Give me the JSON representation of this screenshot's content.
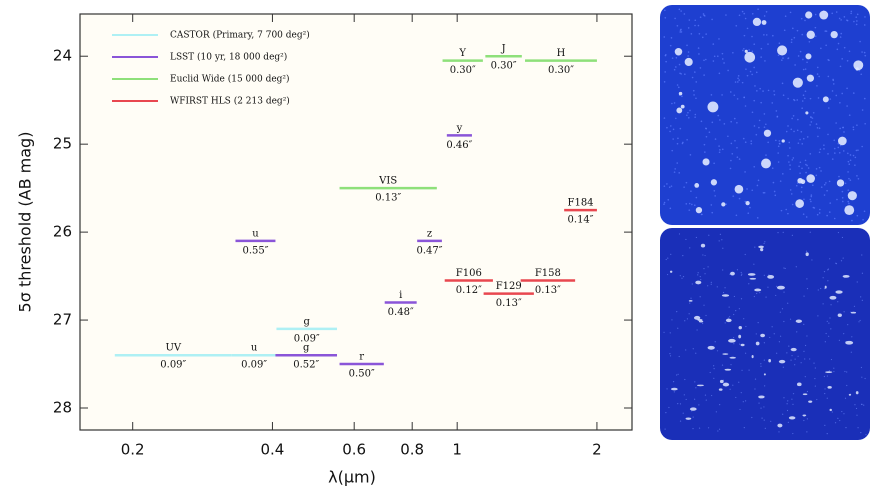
{
  "chart_data": {
    "type": "segment",
    "x_label": "λ(μm)",
    "y_label": "5σ threshold (AB mag)",
    "x_log": true,
    "xlim": [
      0.154,
      2.38
    ],
    "xticks": [
      0.2,
      0.4,
      0.6,
      0.8,
      1,
      2
    ],
    "ylim": [
      23.52,
      28.25
    ],
    "y_inverted": true,
    "yticks": [
      24,
      25,
      26,
      27,
      28
    ],
    "legend_position": "upper left",
    "series": [
      {
        "name": "CASTOR (Primary, 7 700 deg²)",
        "color": "#aef0f4",
        "bands": [
          {
            "label": "UV",
            "resolution": "0.09″",
            "x": [
              0.183,
              0.327
            ],
            "y": 27.4
          },
          {
            "label": "u",
            "resolution": "0.09″",
            "x": [
              0.327,
              0.408
            ],
            "y": 27.4
          },
          {
            "label": "g",
            "resolution": "0.09″",
            "x": [
              0.408,
              0.551
            ],
            "y": 27.1
          }
        ]
      },
      {
        "name": "LSST (10 yr, 18 000 deg²)",
        "color": "#8a55d8",
        "bands": [
          {
            "label": "u",
            "resolution": "0.55″",
            "x": [
              0.333,
              0.406
            ],
            "y": 26.1
          },
          {
            "label": "g",
            "resolution": "0.52″",
            "x": [
              0.406,
              0.551
            ],
            "y": 27.4
          },
          {
            "label": "r",
            "resolution": "0.50″",
            "x": [
              0.558,
              0.695
            ],
            "y": 27.5
          },
          {
            "label": "i",
            "resolution": "0.48″",
            "x": [
              0.698,
              0.818
            ],
            "y": 26.8
          },
          {
            "label": "z",
            "resolution": "0.47″",
            "x": [
              0.82,
              0.927
            ],
            "y": 26.1
          },
          {
            "label": "y",
            "resolution": "0.46″",
            "x": [
              0.95,
              1.076
            ],
            "y": 24.9
          }
        ]
      },
      {
        "name": "Euclid Wide (15 000 deg²)",
        "color": "#8ee07a",
        "bands": [
          {
            "label": "VIS",
            "resolution": "0.13″",
            "x": [
              0.558,
              0.904
            ],
            "y": 25.5
          },
          {
            "label": "Y",
            "resolution": "0.30″",
            "x": [
              0.93,
              1.136
            ],
            "y": 24.05
          },
          {
            "label": "J",
            "resolution": "0.30″",
            "x": [
              1.15,
              1.378
            ],
            "y": 24.0
          },
          {
            "label": "H",
            "resolution": "0.30″",
            "x": [
              1.4,
              2.0
            ],
            "y": 24.05
          }
        ]
      },
      {
        "name": "WFIRST HLS (2 213 deg²)",
        "color": "#e8474f",
        "bands": [
          {
            "label": "F106",
            "resolution": "0.12″",
            "x": [
              0.94,
              1.194
            ],
            "y": 26.55
          },
          {
            "label": "F129",
            "resolution": "0.13″",
            "x": [
              1.14,
              1.463
            ],
            "y": 26.7
          },
          {
            "label": "F158",
            "resolution": "0.13″",
            "x": [
              1.37,
              1.795
            ],
            "y": 26.55
          },
          {
            "label": "F184",
            "resolution": "0.14″",
            "x": [
              1.7,
              2.0
            ],
            "y": 25.75
          }
        ]
      }
    ]
  }
}
